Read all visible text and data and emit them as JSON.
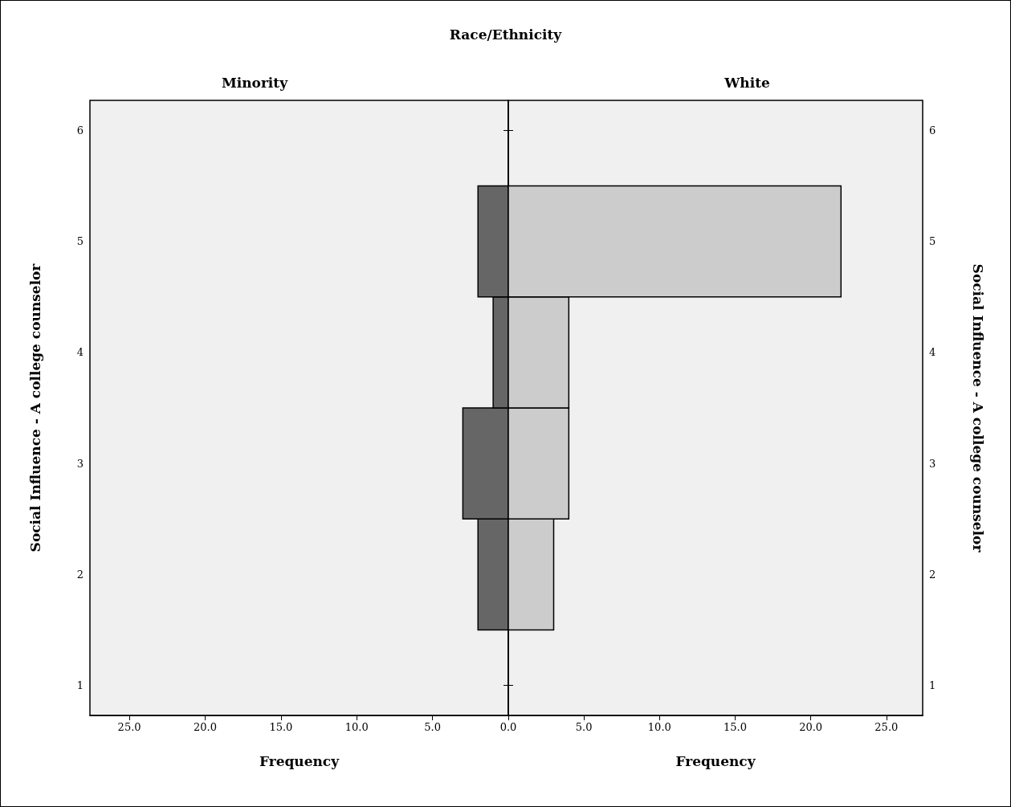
{
  "chart_data": [
    {
      "type": "histogram",
      "orientation": "horizontal",
      "title": "Race/Ethnicity",
      "subtitle": "Minority",
      "xlabel": "Frequency",
      "ylabel": "Social Influence - A college counselor",
      "bins": [
        1.5,
        2.5,
        3.5,
        4.5,
        5.5
      ],
      "values": [
        2,
        3,
        1,
        2
      ],
      "color": "#666666",
      "xlim": [
        27.6,
        0
      ],
      "xticks": [
        {
          "value": 25,
          "label": "25.0"
        },
        {
          "value": 20,
          "label": "20.0"
        },
        {
          "value": 15,
          "label": "15.0"
        },
        {
          "value": 10,
          "label": "10.0"
        },
        {
          "value": 5,
          "label": "5.0"
        }
      ],
      "ylim": [
        0.73,
        6.27
      ],
      "yticks": [
        1,
        2,
        3,
        4,
        5,
        6
      ],
      "grid": false
    },
    {
      "type": "histogram",
      "orientation": "horizontal",
      "subtitle": "White",
      "xlabel": "Frequency",
      "ylabel": "Social Influence - A college counselor",
      "bins": [
        1.5,
        2.5,
        3.5,
        4.5,
        5.5
      ],
      "values": [
        3,
        4,
        4,
        22
      ],
      "color": "#cccccc",
      "xlim": [
        0,
        27.4
      ],
      "xticks": [
        {
          "value": 0,
          "label": "0.0"
        },
        {
          "value": 5,
          "label": "5.0"
        },
        {
          "value": 10,
          "label": "10.0"
        },
        {
          "value": 15,
          "label": "15.0"
        },
        {
          "value": 20,
          "label": "20.0"
        },
        {
          "value": 25,
          "label": "25.0"
        }
      ],
      "ylim": [
        0.73,
        6.27
      ],
      "yticks": [
        1,
        2,
        3,
        4,
        5,
        6
      ],
      "grid": false
    }
  ]
}
